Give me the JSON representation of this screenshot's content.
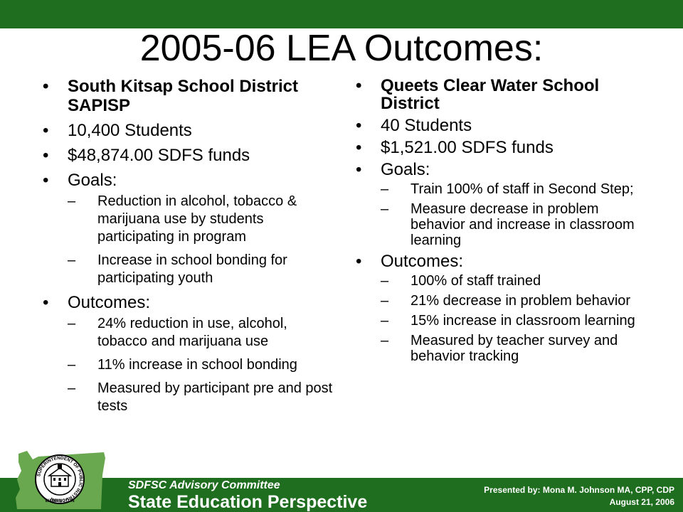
{
  "slide": {
    "title": "2005-06 LEA Outcomes:"
  },
  "left": {
    "district": "South Kitsap School District SAPISP",
    "students": "10,400 Students",
    "funds": "$48,874.00 SDFS funds",
    "goals_label": "Goals:",
    "goals": [
      "Reduction in alcohol, tobacco & marijuana use by students participating in program",
      "Increase in school bonding for participating youth"
    ],
    "outcomes_label": "Outcomes:",
    "outcomes": [
      "24% reduction in use, alcohol, tobacco and marijuana use",
      "11% increase in school bonding",
      "Measured by participant pre and post tests"
    ]
  },
  "right": {
    "district": "Queets Clear Water School District",
    "students": "40 Students",
    "funds": "$1,521.00 SDFS funds",
    "goals_label": "Goals:",
    "goals": [
      "Train 100% of staff in Second Step;",
      "Measure decrease in problem behavior and increase in classroom learning"
    ],
    "outcomes_label": "Outcomes:",
    "outcomes": [
      "100% of staff trained",
      "21% decrease in problem behavior",
      "15% increase in classroom learning",
      "Measured by teacher survey and behavior tracking"
    ]
  },
  "footer": {
    "committee": "SDFSC Advisory Committee",
    "perspective": "State Education Perspective",
    "presenter": "Presented by: Mona M. Johnson MA, CPP, CDP",
    "date": "August 21, 2006",
    "seal_text": "SUPERINTENDENT OF PUBLIC INSTRUCTION",
    "seal_state": "WASHINGTON"
  },
  "colors": {
    "band": "#1f6e1f",
    "map": "#6aa84f"
  }
}
